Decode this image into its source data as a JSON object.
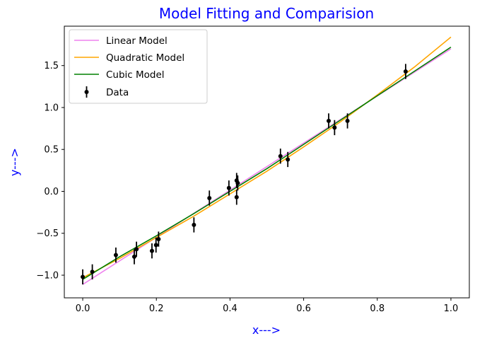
{
  "chart_data": {
    "type": "line",
    "title": "Model Fitting and Comparision",
    "xlabel": "x--->",
    "ylabel": "y--->",
    "label_color": "#0000ff",
    "xlim": [
      -0.05,
      1.05
    ],
    "ylim": [
      -1.27,
      1.97
    ],
    "xticks": [
      0.0,
      0.2,
      0.4,
      0.6,
      0.8,
      1.0
    ],
    "xtick_labels": [
      "0.0",
      "0.2",
      "0.4",
      "0.6",
      "0.8",
      "1.0"
    ],
    "yticks": [
      -1.0,
      -0.5,
      0.0,
      0.5,
      1.0,
      1.5
    ],
    "ytick_labels": [
      "−1.0",
      "−0.5",
      "0.0",
      "0.5",
      "1.0",
      "1.5"
    ],
    "grid": false,
    "legend_position": "top-left",
    "series": [
      {
        "name": "Linear Model",
        "kind": "line",
        "color": "#ee82ee",
        "x": [
          0.0,
          1.0
        ],
        "y": [
          -1.11,
          1.7
        ]
      },
      {
        "name": "Quadratic Model",
        "kind": "line",
        "color": "#ffa500",
        "x": [
          0.0,
          0.1,
          0.2,
          0.3,
          0.4,
          0.5,
          0.6,
          0.7,
          0.8,
          0.9,
          1.0
        ],
        "y": [
          -1.03,
          -0.8,
          -0.55,
          -0.3,
          -0.03,
          0.24,
          0.53,
          0.83,
          1.15,
          1.48,
          1.84
        ]
      },
      {
        "name": "Cubic Model",
        "kind": "line",
        "color": "#008000",
        "x": [
          0.0,
          0.1,
          0.2,
          0.3,
          0.4,
          0.5,
          0.6,
          0.7,
          0.8,
          0.9,
          1.0
        ],
        "y": [
          -1.05,
          -0.78,
          -0.53,
          -0.27,
          0.0,
          0.27,
          0.56,
          0.85,
          1.14,
          1.43,
          1.72
        ]
      },
      {
        "name": "Data",
        "kind": "errorbar",
        "color": "#000000",
        "yerr": 0.09,
        "points": [
          {
            "x": 0.0,
            "y": -1.02
          },
          {
            "x": 0.026,
            "y": -0.96
          },
          {
            "x": 0.09,
            "y": -0.76
          },
          {
            "x": 0.14,
            "y": -0.78
          },
          {
            "x": 0.146,
            "y": -0.69
          },
          {
            "x": 0.188,
            "y": -0.71
          },
          {
            "x": 0.199,
            "y": -0.64
          },
          {
            "x": 0.206,
            "y": -0.57
          },
          {
            "x": 0.302,
            "y": -0.4
          },
          {
            "x": 0.344,
            "y": -0.08
          },
          {
            "x": 0.397,
            "y": 0.04
          },
          {
            "x": 0.418,
            "y": 0.13
          },
          {
            "x": 0.418,
            "y": -0.07
          },
          {
            "x": 0.421,
            "y": 0.1
          },
          {
            "x": 0.537,
            "y": 0.42
          },
          {
            "x": 0.557,
            "y": 0.38
          },
          {
            "x": 0.668,
            "y": 0.84
          },
          {
            "x": 0.684,
            "y": 0.76
          },
          {
            "x": 0.719,
            "y": 0.84
          },
          {
            "x": 0.877,
            "y": 1.43
          }
        ]
      }
    ]
  }
}
